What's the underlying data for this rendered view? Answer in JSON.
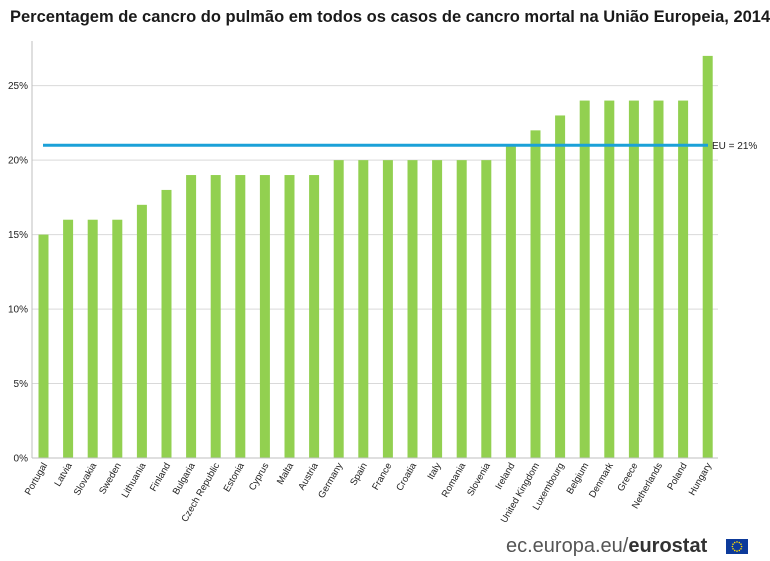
{
  "title": "Percentagem de cancro do pulmão em todos os casos de cancro mortal na União Europeia, 2014",
  "source": {
    "prefix": "ec.europa.eu/",
    "brand": "eurostat"
  },
  "colors": {
    "bar": "#92d050",
    "reference_line": "#1ba1d8",
    "grid": "#d9d9d9",
    "flag": "#0d3a9a",
    "flag_stars": "#ffdd00"
  },
  "chart_data": {
    "type": "bar",
    "title": "Percentagem de cancro do pulmão em todos os casos de cancro mortal na União Europeia, 2014",
    "xlabel": "",
    "ylabel": "",
    "ylim": [
      0,
      28
    ],
    "yticks": [
      0,
      5,
      10,
      15,
      20,
      25
    ],
    "ytick_labels": [
      "0%",
      "5%",
      "10%",
      "15%",
      "20%",
      "25%"
    ],
    "grid": true,
    "categories": [
      "Portugal",
      "Latvia",
      "Slovakia",
      "Sweden",
      "Lithuania",
      "Finland",
      "Bulgaria",
      "Czech Republic",
      "Estonia",
      "Cyprus",
      "Malta",
      "Austria",
      "Germany",
      "Spain",
      "France",
      "Croatia",
      "Italy",
      "Romania",
      "Slovenia",
      "Ireland",
      "United Kingdom",
      "Luxembourg",
      "Belgium",
      "Denmark",
      "Greece",
      "Netherlands",
      "Poland",
      "Hungary"
    ],
    "values": [
      15,
      16,
      16,
      16,
      17,
      18,
      19,
      19,
      19,
      19,
      19,
      19,
      20,
      20,
      20,
      20,
      20,
      20,
      20,
      21,
      22,
      23,
      24,
      24,
      24,
      24,
      24,
      27
    ],
    "reference_line": {
      "value": 21,
      "label": "EU = 21%"
    }
  }
}
